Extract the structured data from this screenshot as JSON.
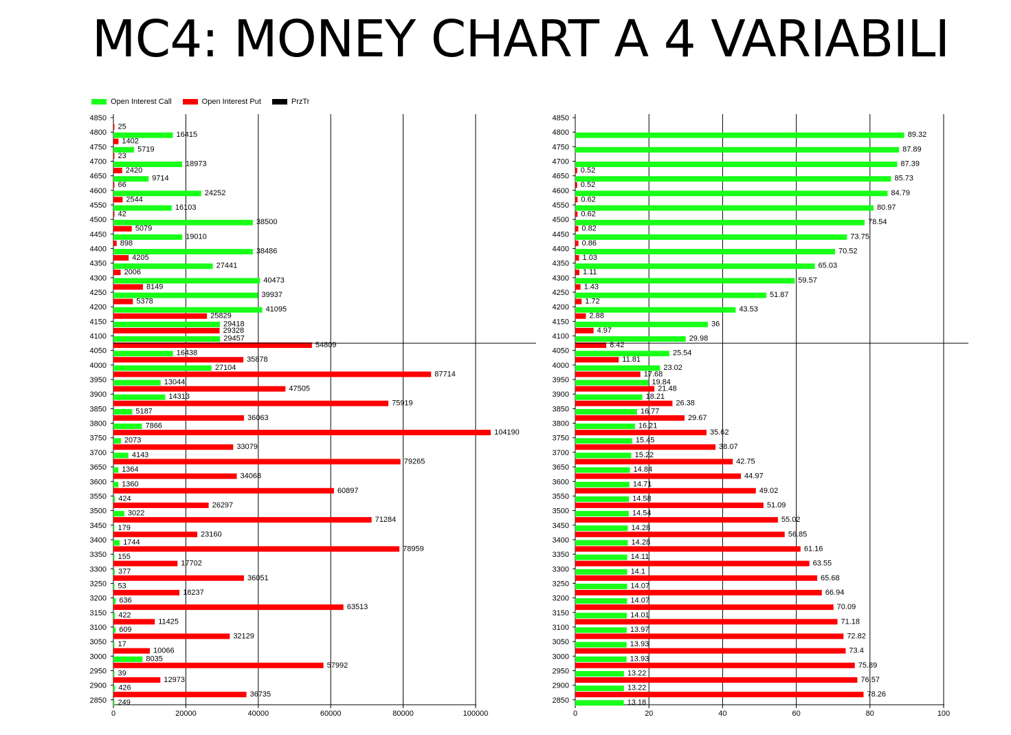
{
  "title": "MC4: MONEY CHART A 4 VARIABILI",
  "legend": [
    {
      "label": "Open Interest Call",
      "color": "#19ff19"
    },
    {
      "label": "Open Interest Put",
      "color": "#ff0000"
    },
    {
      "label": "PrzTr",
      "color": "#000000"
    }
  ],
  "chart_data": [
    {
      "type": "bar",
      "orientation": "horizontal",
      "categories": [
        4850,
        4800,
        4750,
        4700,
        4650,
        4600,
        4550,
        4500,
        4450,
        4400,
        4350,
        4300,
        4250,
        4200,
        4150,
        4100,
        4050,
        4000,
        3950,
        3900,
        3850,
        3800,
        3750,
        3700,
        3650,
        3600,
        3550,
        3500,
        3450,
        3400,
        3350,
        3300,
        3250,
        3200,
        3150,
        3100,
        3050,
        3000,
        2950,
        2900,
        2850
      ],
      "series": [
        {
          "name": "Open Interest Call",
          "color": "#19ff19",
          "values": [
            null,
            16415,
            5719,
            18973,
            9714,
            24252,
            16103,
            38500,
            19010,
            38486,
            27441,
            40473,
            39937,
            41095,
            29418,
            29457,
            16438,
            27104,
            13044,
            14313,
            5187,
            7866,
            2073,
            4143,
            1364,
            1360,
            424,
            3022,
            179,
            1744,
            155,
            377,
            53,
            636,
            422,
            609,
            17,
            8035,
            39,
            426,
            249
          ]
        },
        {
          "name": "Open Interest Put",
          "color": "#ff0000",
          "values": [
            25,
            1402,
            23,
            2420,
            66,
            2544,
            42,
            5079,
            898,
            4205,
            2006,
            8149,
            5378,
            25829,
            29328,
            54809,
            35878,
            87714,
            47505,
            75919,
            36063,
            104190,
            33079,
            79265,
            34068,
            60897,
            26297,
            71284,
            23160,
            78959,
            17702,
            36051,
            18237,
            63513,
            11425,
            32129,
            10066,
            57992,
            12973,
            36735,
            null
          ]
        }
      ],
      "xlim": [
        0,
        115000
      ],
      "xticks": [
        0,
        20000,
        40000,
        60000,
        80000,
        100000
      ],
      "price_line": 4075
    },
    {
      "type": "bar",
      "orientation": "horizontal",
      "categories": [
        4850,
        4800,
        4750,
        4700,
        4650,
        4600,
        4550,
        4500,
        4450,
        4400,
        4350,
        4300,
        4250,
        4200,
        4150,
        4100,
        4050,
        4000,
        3950,
        3900,
        3850,
        3800,
        3750,
        3700,
        3650,
        3600,
        3550,
        3500,
        3450,
        3400,
        3350,
        3300,
        3250,
        3200,
        3150,
        3100,
        3050,
        3000,
        2950,
        2900,
        2850
      ],
      "series": [
        {
          "name": "Open Interest Call",
          "color": "#19ff19",
          "values": [
            null,
            89.32,
            87.89,
            87.39,
            85.73,
            84.79,
            80.97,
            78.54,
            73.75,
            70.52,
            65.03,
            59.57,
            51.87,
            43.53,
            36,
            29.98,
            25.54,
            23.02,
            19.84,
            18.21,
            16.77,
            16.21,
            15.45,
            15.22,
            14.84,
            14.71,
            14.58,
            14.54,
            14.28,
            14.28,
            14.11,
            14.1,
            14.07,
            14.07,
            14.01,
            13.97,
            13.93,
            13.93,
            13.22,
            13.22,
            13.18
          ]
        },
        {
          "name": "Open Interest Put",
          "color": "#ff0000",
          "values": [
            null,
            null,
            null,
            0.52,
            0.52,
            0.62,
            0.62,
            0.82,
            0.86,
            1.03,
            1.11,
            1.43,
            1.72,
            2.88,
            4.97,
            8.42,
            11.81,
            17.68,
            21.48,
            26.38,
            29.67,
            35.62,
            38.07,
            42.75,
            44.97,
            49.02,
            51.09,
            55.02,
            56.85,
            61.16,
            63.55,
            65.68,
            66.94,
            70.09,
            71.18,
            72.82,
            73.4,
            75.89,
            76.57,
            78.26,
            null
          ]
        }
      ],
      "xlim": [
        0,
        106
      ],
      "xticks": [
        0,
        20,
        40,
        60,
        80,
        100
      ],
      "price_line": 4075
    }
  ]
}
